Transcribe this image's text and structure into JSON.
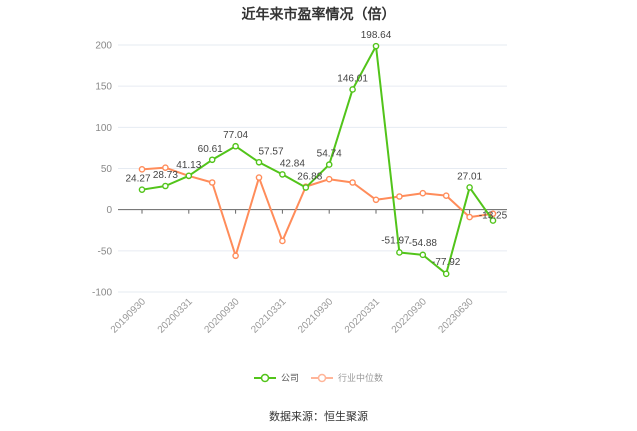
{
  "title": "近年来市盈率情况（倍）",
  "legend": [
    {
      "label": "公司",
      "color": "#52c41a"
    },
    {
      "label": "行业中位数",
      "color": "#ff8c5a"
    }
  ],
  "source": "数据来源：恒生聚源",
  "chart_data": {
    "type": "line",
    "title": "近年来市盈率情况（倍）",
    "xlabel": "",
    "ylabel": "",
    "ylim": [
      -100,
      200
    ],
    "yticks": [
      200,
      150,
      100,
      50,
      0,
      -50,
      -100
    ],
    "grid": true,
    "legend_position": "bottom",
    "x_tick_labels": [
      "20190930",
      "20200331",
      "20200930",
      "20210331",
      "20210930",
      "20220331",
      "20220930",
      "20230630"
    ],
    "point_count": 16,
    "series": [
      {
        "name": "公司",
        "color": "#52c41a",
        "values": [
          24.27,
          28.73,
          41.13,
          60.61,
          77.04,
          57.57,
          42.84,
          26.88,
          54.74,
          146.01,
          198.64,
          -51.97,
          -54.88,
          -77.92,
          27.01,
          -13.25
        ],
        "labels_shown": true
      },
      {
        "name": "行业中位数",
        "color": "#ff8c5a",
        "values": [
          49,
          51,
          41,
          33,
          -56,
          39,
          -38,
          28,
          37,
          33,
          12,
          16,
          20,
          17,
          -9,
          -5
        ],
        "labels_shown": false
      }
    ]
  }
}
